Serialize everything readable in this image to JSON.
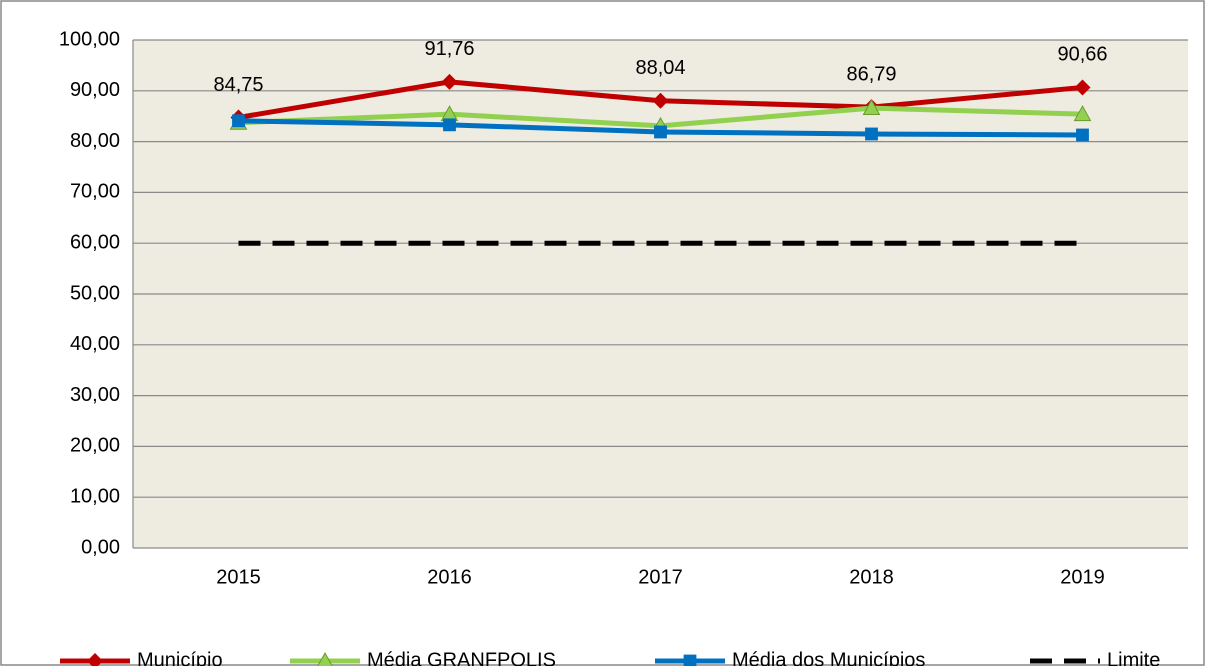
{
  "chart_data": {
    "type": "line",
    "categories": [
      "2015",
      "2016",
      "2017",
      "2018",
      "2019"
    ],
    "series": [
      {
        "name": "Município",
        "color": "#c00000",
        "marker": "diamond",
        "values": [
          84.75,
          91.76,
          88.04,
          86.79,
          90.66
        ],
        "value_labels": [
          "84,75",
          "91,76",
          "88,04",
          "86,79",
          "90,66"
        ]
      },
      {
        "name": "Média GRANFPOLIS",
        "color": "#92d050",
        "marker": "triangle",
        "values": [
          83.7,
          85.4,
          83.1,
          86.6,
          85.4
        ]
      },
      {
        "name": "Média dos Municípios",
        "color": "#0070c0",
        "marker": "square",
        "values": [
          84.1,
          83.3,
          81.9,
          81.5,
          81.3
        ]
      },
      {
        "name": "Limite",
        "color": "#000000",
        "marker": "none",
        "dashed": true,
        "values": [
          60,
          60,
          60,
          60,
          60
        ]
      }
    ],
    "ylim": [
      0,
      100
    ],
    "yticks": [
      {
        "value": 0,
        "label": "0,00"
      },
      {
        "value": 10,
        "label": "10,00"
      },
      {
        "value": 20,
        "label": "20,00"
      },
      {
        "value": 30,
        "label": "30,00"
      },
      {
        "value": 40,
        "label": "40,00"
      },
      {
        "value": 50,
        "label": "50,00"
      },
      {
        "value": 60,
        "label": "60,00"
      },
      {
        "value": 70,
        "label": "70,00"
      },
      {
        "value": 80,
        "label": "80,00"
      },
      {
        "value": 90,
        "label": "90,00"
      },
      {
        "value": 100,
        "label": "100,00"
      }
    ],
    "grid": true,
    "legend": "bottom"
  }
}
